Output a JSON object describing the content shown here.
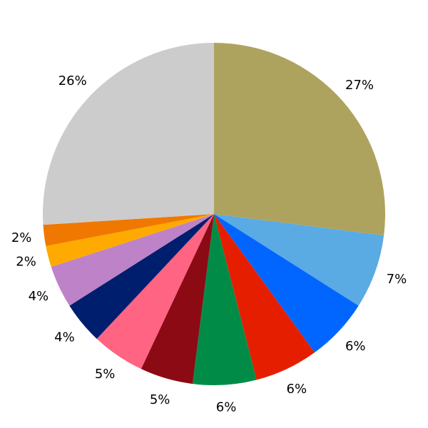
{
  "chart_data": {
    "type": "pie",
    "values": [
      27,
      7,
      6,
      6,
      6,
      5,
      5,
      4,
      4,
      2,
      2,
      26
    ],
    "value_labels": [
      "27%",
      "7%",
      "6%",
      "6%",
      "6%",
      "5%",
      "5%",
      "4%",
      "4%",
      "2%",
      "2%",
      "26%"
    ],
    "colors": [
      "#aea35e",
      "#5aaae4",
      "#0066ff",
      "#e61e00",
      "#008c46",
      "#8c0a14",
      "#ff6482",
      "#001e6e",
      "#be82c8",
      "#ffaa00",
      "#f07800",
      "#cccccc"
    ]
  }
}
